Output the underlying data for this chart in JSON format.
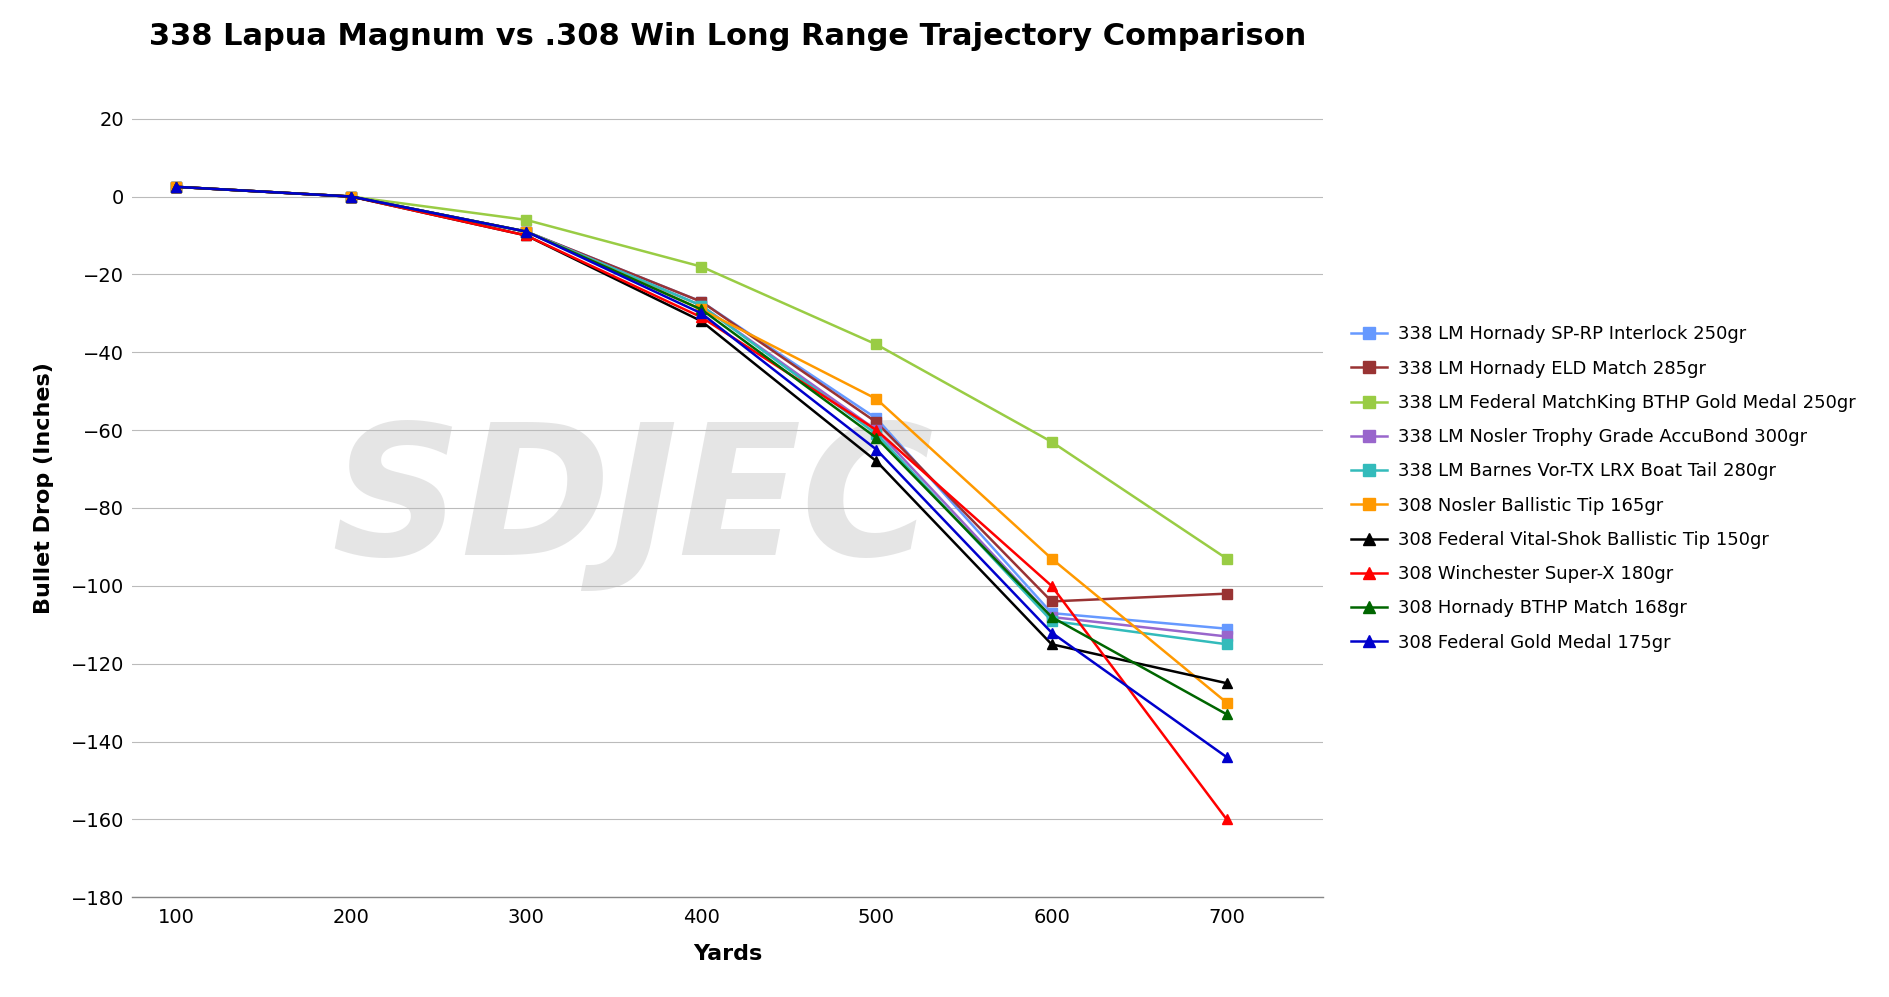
{
  "title": "338 Lapua Magnum vs .308 Win Long Range Trajectory Comparison",
  "xlabel": "Yards",
  "ylabel": "Bullet Drop (Inches)",
  "xlim": [
    75,
    755
  ],
  "ylim": [
    -180,
    30
  ],
  "xticks": [
    100,
    200,
    300,
    400,
    500,
    600,
    700
  ],
  "yticks": [
    -180,
    -160,
    -140,
    -120,
    -100,
    -80,
    -60,
    -40,
    -20,
    0,
    20
  ],
  "series": [
    {
      "label": "338 LM Hornady SP-RP Interlock 250gr",
      "color": "#6699FF",
      "marker": "s",
      "x": [
        100,
        200,
        300,
        400,
        500,
        600,
        700
      ],
      "y": [
        2.5,
        0,
        -9,
        -27,
        -57,
        -107,
        -111
      ]
    },
    {
      "label": "338 LM Hornady ELD Match 285gr",
      "color": "#993333",
      "marker": "s",
      "x": [
        100,
        200,
        300,
        400,
        500,
        600,
        700
      ],
      "y": [
        2.5,
        0,
        -9,
        -27,
        -58,
        -104,
        -102
      ]
    },
    {
      "label": "338 LM Federal MatchKing BTHP Gold Medal 250gr",
      "color": "#99CC44",
      "marker": "s",
      "x": [
        100,
        200,
        300,
        400,
        500,
        600,
        700
      ],
      "y": [
        2.5,
        0,
        -6,
        -18,
        -38,
        -63,
        -93
      ]
    },
    {
      "label": "338 LM Nosler Trophy Grade AccuBond 300gr",
      "color": "#9966CC",
      "marker": "s",
      "x": [
        100,
        200,
        300,
        400,
        500,
        600,
        700
      ],
      "y": [
        2.5,
        0,
        -9,
        -28,
        -60,
        -108,
        -113
      ]
    },
    {
      "label": "338 LM Barnes Vor-TX LRX Boat Tail 280gr",
      "color": "#33BBBB",
      "marker": "s",
      "x": [
        100,
        200,
        300,
        400,
        500,
        600,
        700
      ],
      "y": [
        2.5,
        0,
        -9,
        -28,
        -61,
        -109,
        -115
      ]
    },
    {
      "label": "308 Nosler Ballistic Tip 165gr",
      "color": "#FF9900",
      "marker": "s",
      "x": [
        100,
        200,
        300,
        400,
        500,
        600,
        700
      ],
      "y": [
        2.5,
        0,
        -9,
        -29,
        -52,
        -93,
        -130
      ]
    },
    {
      "label": "308 Federal Vital-Shok Ballistic Tip 150gr",
      "color": "#000000",
      "marker": "^",
      "x": [
        100,
        200,
        300,
        400,
        500,
        600,
        700
      ],
      "y": [
        2.5,
        0,
        -10,
        -32,
        -68,
        -115,
        -125
      ]
    },
    {
      "label": "308 Winchester Super-X 180gr",
      "color": "#FF0000",
      "marker": "^",
      "x": [
        100,
        200,
        300,
        400,
        500,
        600,
        700
      ],
      "y": [
        2.5,
        0,
        -10,
        -31,
        -60,
        -100,
        -160
      ]
    },
    {
      "label": "308 Hornady BTHP Match 168gr",
      "color": "#006600",
      "marker": "^",
      "x": [
        100,
        200,
        300,
        400,
        500,
        600,
        700
      ],
      "y": [
        2.5,
        0,
        -9,
        -29,
        -62,
        -108,
        -133
      ]
    },
    {
      "label": "308 Federal Gold Medal 175gr",
      "color": "#0000CC",
      "marker": "^",
      "x": [
        100,
        200,
        300,
        400,
        500,
        600,
        700
      ],
      "y": [
        2.5,
        0,
        -9,
        -30,
        -65,
        -112,
        -144
      ]
    }
  ],
  "background_color": "#FFFFFF",
  "watermark_text": "SDJEC",
  "grid_color": "#BBBBBB",
  "title_fontsize": 22,
  "axis_label_fontsize": 16,
  "tick_fontsize": 14,
  "legend_fontsize": 13
}
